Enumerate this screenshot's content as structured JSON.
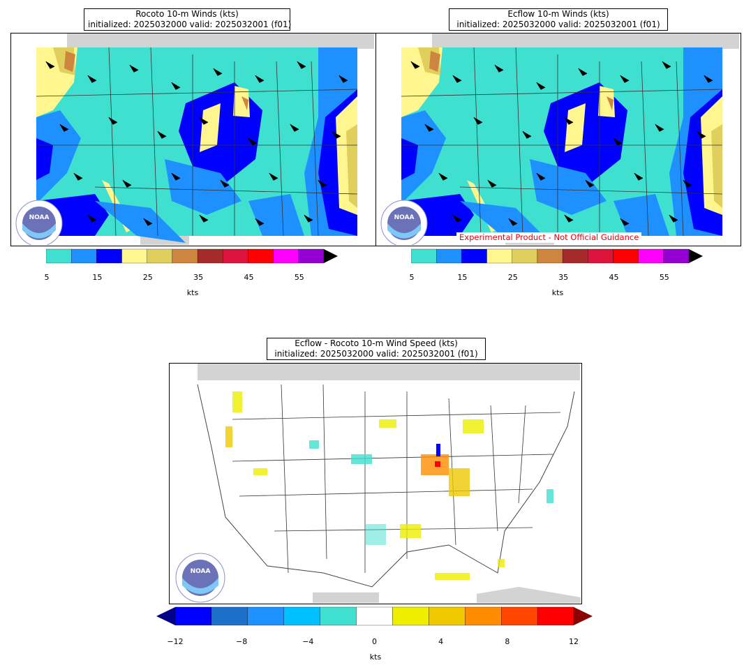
{
  "panels": {
    "rocoto": {
      "title": "Rocoto 10-m Winds (kts)",
      "subtitle": "initialized: 2025032000 valid: 2025032001 (f01)"
    },
    "ecflow": {
      "title": "Ecflow 10-m Winds (kts)",
      "subtitle": "initialized: 2025032000 valid: 2025032001 (f01)",
      "disclaimer": "Experimental Product - Not Official Guidance"
    },
    "difference": {
      "title": "Ecflow - Rocoto 10-m Wind Speed (kts)",
      "subtitle": "initialized: 2025032000 valid: 2025032001 (f01)"
    }
  },
  "speed_colorbar": {
    "units": "kts",
    "ticks": [
      "5",
      "15",
      "25",
      "35",
      "45",
      "55"
    ],
    "levels": [
      5,
      10,
      15,
      20,
      25,
      30,
      35,
      40,
      45,
      50,
      55,
      60
    ],
    "colors": [
      "#40e0d0",
      "#1e90ff",
      "#0000ff",
      "#fff68f",
      "#e0cf5c",
      "#cd853f",
      "#a52a2a",
      "#dc143c",
      "#ff0000",
      "#ff00ff",
      "#9400d3"
    ],
    "extend_color": "#000000"
  },
  "diff_colorbar": {
    "units": "kts",
    "ticks": [
      "−12",
      "−8",
      "−4",
      "0",
      "4",
      "8",
      "12"
    ],
    "levels": [
      -12,
      -10,
      -8,
      -6,
      -4,
      -2,
      2,
      4,
      6,
      8,
      10,
      12
    ],
    "colors": [
      "#0000ff",
      "#1c70c8",
      "#1e90ff",
      "#00bfff",
      "#40e0d0",
      "#ffffff",
      "#eeee00",
      "#eec900",
      "#ff8c00",
      "#ff4500",
      "#ff0000"
    ],
    "extend_low_color": "#00008b",
    "extend_high_color": "#8b0000"
  },
  "colors": {
    "ocean_mask": "#d3d3d3",
    "lines": "#333333"
  },
  "logo": {
    "text": "NOAA",
    "ring_text": "NATIONAL OCEANIC AND ATMOSPHERIC ADMINISTRATION • U.S. DEPARTMENT OF COMMERCE"
  }
}
